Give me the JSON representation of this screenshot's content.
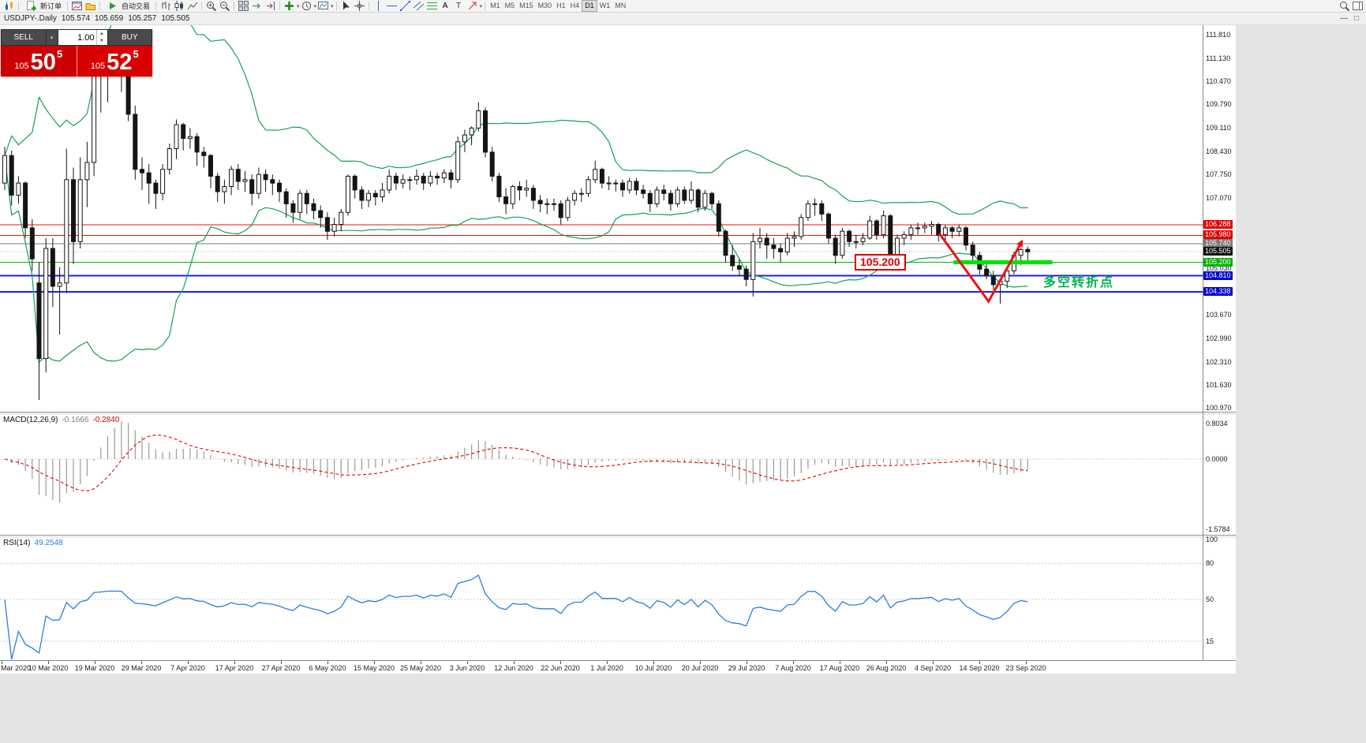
{
  "toolbar": {
    "new_order_label": "新订单",
    "auto_trading_label": "自动交易",
    "text_tool_label": "A",
    "label_tool_label": "T",
    "timeframes": [
      "M1",
      "M5",
      "M15",
      "M30",
      "H1",
      "H4",
      "D1",
      "W1",
      "MN"
    ],
    "active_timeframe": "D1"
  },
  "window_controls": {
    "minimize": "—",
    "restore": "□",
    "close": "×"
  },
  "chart_header": {
    "title": "USDJPY-.Daily",
    "open": "105.574",
    "high": "105.659",
    "low": "105.257",
    "close": "105.505"
  },
  "trade_panel": {
    "sell_label": "SELL",
    "buy_label": "BUY",
    "volume": "1.00",
    "bid_base": "105",
    "bid_big": "50",
    "bid_sup": "5",
    "ask_base": "105",
    "ask_big": "52",
    "ask_sup": "5"
  },
  "annotations": {
    "price_callout": "105.200",
    "turning_point_text": "多空转折点"
  },
  "price_axis": {
    "ticks": [
      111.81,
      111.13,
      110.47,
      109.79,
      109.11,
      108.43,
      107.75,
      107.07,
      105.03,
      103.67,
      102.99,
      102.31,
      101.63,
      100.97
    ],
    "line_labels": [
      {
        "text": "106.288",
        "price": 106.288,
        "bg": "#dd0000",
        "fg": "#ffffff"
      },
      {
        "text": "105.980",
        "price": 105.98,
        "bg": "#dd0000",
        "fg": "#ffffff"
      },
      {
        "text": "105.740",
        "price": 105.74,
        "bg": "#7a7a7a",
        "fg": "#ffffff"
      },
      {
        "text": "105.505",
        "price": 105.505,
        "bg": "#101010",
        "fg": "#ffffff"
      },
      {
        "text": "105.200",
        "price": 105.2,
        "bg": "#00b300",
        "fg": "#ffffff"
      },
      {
        "text": "104.810",
        "price": 104.81,
        "bg": "#0000cc",
        "fg": "#ffffff"
      },
      {
        "text": "104.338",
        "price": 104.338,
        "bg": "#0000cc",
        "fg": "#ffffff"
      }
    ]
  },
  "macd_panel": {
    "name": "MACD(12,26,9)",
    "value1": "-0.1666",
    "value2": "-0.2840",
    "axis_labels": [
      {
        "text": "0.8034",
        "value": 0.8034
      },
      {
        "text": "0.0000",
        "value": 0
      },
      {
        "text": "-1.5784",
        "value": -1.5784
      }
    ]
  },
  "rsi_panel": {
    "name": "RSI(14)",
    "value": "49.2548",
    "axis_labels": [
      {
        "text": "100",
        "value": 100
      },
      {
        "text": "80",
        "value": 80
      },
      {
        "text": "50",
        "value": 50
      },
      {
        "text": "15",
        "value": 15
      }
    ],
    "levels": [
      80,
      50,
      15
    ]
  },
  "date_axis": [
    "Mar 2020",
    "10 Mar 2020",
    "19 Mar 2020",
    "29 Mar 2020",
    "7 Apr 2020",
    "17 Apr 2020",
    "27 Apr 2020",
    "6 May 2020",
    "15 May 2020",
    "25 May 2020",
    "3 Jun 2020",
    "12 Jun 2020",
    "22 Jun 2020",
    "1 Jul 2020",
    "10 Jul 2020",
    "20 Jul 2020",
    "29 Jul 2020",
    "7 Aug 2020",
    "17 Aug 2020",
    "26 Aug 2020",
    "4 Sep 2020",
    "14 Sep 2020",
    "23 Sep 2020"
  ],
  "chart_data": {
    "type": "candlestick",
    "symbol": "USDJPY",
    "period": "Daily",
    "ylim": [
      100.857,
      112.11
    ],
    "ohlc": [
      [
        107.5,
        108.55,
        107.3,
        108.3
      ],
      [
        108.3,
        108.45,
        106.85,
        107.15
      ],
      [
        107.15,
        107.7,
        106.9,
        107.5
      ],
      [
        107.5,
        107.55,
        105.9,
        106.2
      ],
      [
        106.2,
        106.45,
        104.95,
        105.3
      ],
      [
        104.6,
        105.2,
        101.2,
        102.4
      ],
      [
        102.4,
        105.9,
        102.0,
        105.6
      ],
      [
        105.6,
        105.9,
        103.9,
        104.5
      ],
      [
        104.5,
        105.05,
        103.1,
        104.6
      ],
      [
        104.6,
        108.5,
        104.3,
        107.6
      ],
      [
        107.6,
        107.95,
        105.15,
        105.8
      ],
      [
        105.8,
        108.25,
        105.6,
        107.6
      ],
      [
        107.6,
        108.7,
        106.8,
        108.1
      ],
      [
        108.1,
        110.95,
        107.7,
        110.7
      ],
      [
        110.7,
        111.5,
        109.55,
        110.9
      ],
      [
        110.9,
        111.6,
        109.85,
        111.2
      ],
      [
        111.2,
        111.7,
        110.75,
        111.25
      ],
      [
        111.25,
        111.45,
        110.15,
        111.2
      ],
      [
        111.2,
        111.3,
        109.3,
        109.5
      ],
      [
        109.5,
        109.75,
        107.6,
        107.9
      ],
      [
        107.9,
        108.25,
        107.3,
        107.8
      ],
      [
        107.8,
        108.05,
        106.9,
        107.5
      ],
      [
        107.5,
        107.6,
        106.75,
        107.2
      ],
      [
        107.2,
        108.05,
        107.0,
        107.9
      ],
      [
        107.9,
        108.65,
        107.75,
        108.5
      ],
      [
        108.5,
        109.35,
        108.2,
        109.2
      ],
      [
        109.2,
        109.25,
        108.45,
        108.8
      ],
      [
        108.8,
        109.1,
        108.5,
        108.85
      ],
      [
        108.85,
        108.95,
        108.0,
        108.4
      ],
      [
        108.4,
        108.55,
        107.95,
        108.3
      ],
      [
        108.3,
        108.35,
        107.35,
        107.7
      ],
      [
        107.7,
        107.8,
        106.95,
        107.25
      ],
      [
        107.25,
        107.6,
        106.9,
        107.4
      ],
      [
        107.4,
        108.0,
        107.15,
        107.9
      ],
      [
        107.9,
        108.05,
        107.3,
        107.55
      ],
      [
        107.55,
        107.85,
        107.25,
        107.6
      ],
      [
        107.6,
        107.75,
        106.85,
        107.2
      ],
      [
        107.2,
        107.95,
        107.05,
        107.75
      ],
      [
        107.75,
        107.9,
        107.25,
        107.6
      ],
      [
        107.6,
        107.75,
        107.15,
        107.5
      ],
      [
        107.5,
        107.6,
        106.95,
        107.25
      ],
      [
        107.25,
        107.35,
        106.5,
        106.9
      ],
      [
        106.9,
        107.0,
        106.35,
        106.65
      ],
      [
        106.65,
        107.3,
        106.45,
        107.2
      ],
      [
        107.2,
        107.3,
        106.6,
        106.9
      ],
      [
        106.9,
        107.05,
        106.45,
        106.7
      ],
      [
        106.7,
        106.85,
        106.2,
        106.5
      ],
      [
        106.5,
        106.65,
        105.85,
        106.1
      ],
      [
        106.1,
        106.5,
        105.95,
        106.3
      ],
      [
        106.3,
        106.75,
        106.1,
        106.65
      ],
      [
        106.65,
        107.75,
        106.55,
        107.7
      ],
      [
        107.7,
        107.75,
        107.05,
        107.3
      ],
      [
        107.3,
        107.4,
        106.75,
        107.0
      ],
      [
        107.0,
        107.3,
        106.8,
        107.2
      ],
      [
        107.2,
        107.3,
        106.85,
        107.1
      ],
      [
        107.1,
        107.5,
        106.95,
        107.3
      ],
      [
        107.3,
        107.9,
        107.2,
        107.7
      ],
      [
        107.7,
        107.8,
        107.3,
        107.5
      ],
      [
        107.5,
        107.75,
        107.35,
        107.6
      ],
      [
        107.6,
        107.7,
        107.3,
        107.6
      ],
      [
        107.6,
        107.9,
        107.45,
        107.7
      ],
      [
        107.7,
        107.8,
        107.3,
        107.5
      ],
      [
        107.5,
        107.85,
        107.4,
        107.7
      ],
      [
        107.7,
        107.8,
        107.45,
        107.65
      ],
      [
        107.65,
        107.9,
        107.5,
        107.8
      ],
      [
        107.8,
        107.9,
        107.35,
        107.6
      ],
      [
        107.6,
        108.85,
        107.5,
        108.7
      ],
      [
        108.7,
        109.05,
        108.4,
        108.9
      ],
      [
        108.9,
        109.15,
        108.6,
        109.1
      ],
      [
        109.1,
        109.85,
        109.0,
        109.6
      ],
      [
        109.6,
        109.7,
        108.25,
        108.4
      ],
      [
        108.4,
        108.55,
        107.55,
        107.7
      ],
      [
        107.7,
        107.8,
        106.95,
        107.1
      ],
      [
        107.1,
        107.35,
        106.6,
        106.9
      ],
      [
        106.9,
        107.45,
        106.75,
        107.4
      ],
      [
        107.4,
        107.55,
        107.0,
        107.3
      ],
      [
        107.3,
        107.6,
        107.1,
        107.35
      ],
      [
        107.35,
        107.45,
        106.75,
        107.0
      ],
      [
        107.0,
        107.15,
        106.65,
        106.9
      ],
      [
        106.9,
        107.05,
        106.6,
        106.9
      ],
      [
        106.9,
        107.05,
        106.7,
        106.9
      ],
      [
        106.9,
        107.0,
        106.3,
        106.5
      ],
      [
        106.5,
        107.1,
        106.4,
        107.0
      ],
      [
        107.0,
        107.3,
        106.85,
        107.2
      ],
      [
        107.2,
        107.35,
        106.95,
        107.2
      ],
      [
        107.2,
        107.7,
        107.1,
        107.6
      ],
      [
        107.6,
        108.15,
        107.5,
        107.9
      ],
      [
        107.9,
        107.95,
        107.35,
        107.5
      ],
      [
        107.5,
        107.7,
        107.3,
        107.5
      ],
      [
        107.5,
        107.6,
        107.25,
        107.5
      ],
      [
        107.5,
        107.6,
        107.1,
        107.3
      ],
      [
        107.3,
        107.65,
        107.2,
        107.55
      ],
      [
        107.55,
        107.65,
        107.15,
        107.3
      ],
      [
        107.3,
        107.45,
        107.05,
        107.2
      ],
      [
        107.2,
        107.3,
        106.65,
        106.9
      ],
      [
        106.9,
        107.4,
        106.8,
        107.3
      ],
      [
        107.3,
        107.45,
        107.0,
        107.2
      ],
      [
        107.2,
        107.3,
        106.7,
        106.9
      ],
      [
        106.9,
        107.4,
        106.8,
        107.3
      ],
      [
        107.3,
        107.4,
        106.9,
        107.0
      ],
      [
        107.0,
        107.55,
        106.9,
        107.3
      ],
      [
        107.3,
        107.35,
        106.65,
        106.8
      ],
      [
        106.8,
        107.3,
        106.7,
        107.2
      ],
      [
        107.2,
        107.25,
        106.75,
        106.9
      ],
      [
        106.9,
        107.0,
        105.95,
        106.1
      ],
      [
        106.1,
        106.15,
        105.2,
        105.4
      ],
      [
        105.4,
        105.7,
        104.95,
        105.1
      ],
      [
        105.1,
        105.3,
        104.8,
        105.0
      ],
      [
        105.0,
        105.1,
        104.5,
        104.7
      ],
      [
        104.7,
        106.05,
        104.2,
        105.8
      ],
      [
        105.8,
        106.2,
        105.6,
        105.9
      ],
      [
        105.9,
        106.05,
        105.3,
        105.7
      ],
      [
        105.7,
        105.9,
        105.3,
        105.6
      ],
      [
        105.6,
        105.75,
        105.2,
        105.5
      ],
      [
        105.5,
        106.05,
        105.4,
        105.9
      ],
      [
        105.9,
        106.1,
        105.65,
        105.95
      ],
      [
        105.95,
        106.6,
        105.85,
        106.5
      ],
      [
        106.5,
        107.0,
        106.4,
        106.9
      ],
      [
        106.9,
        107.05,
        106.55,
        106.9
      ],
      [
        106.9,
        107.0,
        106.4,
        106.6
      ],
      [
        106.6,
        106.65,
        105.75,
        105.9
      ],
      [
        105.9,
        106.0,
        105.15,
        105.4
      ],
      [
        105.4,
        106.2,
        105.3,
        106.1
      ],
      [
        106.1,
        106.15,
        105.65,
        105.8
      ],
      [
        105.8,
        106.0,
        105.6,
        105.8
      ],
      [
        105.8,
        106.05,
        105.7,
        105.9
      ],
      [
        105.9,
        106.55,
        105.85,
        106.4
      ],
      [
        106.4,
        106.45,
        105.85,
        106.0
      ],
      [
        106.0,
        106.7,
        105.9,
        106.55
      ],
      [
        106.55,
        106.6,
        105.2,
        105.4
      ],
      [
        105.4,
        106.0,
        105.3,
        105.9
      ],
      [
        105.9,
        106.1,
        105.7,
        106.0
      ],
      [
        106.0,
        106.3,
        105.85,
        106.2
      ],
      [
        106.2,
        106.35,
        106.0,
        106.2
      ],
      [
        106.2,
        106.35,
        106.05,
        106.25
      ],
      [
        106.25,
        106.4,
        106.0,
        106.3
      ],
      [
        106.3,
        106.35,
        105.8,
        106.0
      ],
      [
        106.0,
        106.3,
        105.85,
        106.2
      ],
      [
        106.2,
        106.25,
        105.9,
        106.1
      ],
      [
        106.1,
        106.3,
        105.95,
        106.2
      ],
      [
        106.2,
        106.25,
        105.55,
        105.7
      ],
      [
        105.7,
        105.8,
        105.25,
        105.4
      ],
      [
        105.4,
        105.5,
        104.85,
        105.0
      ],
      [
        105.0,
        105.2,
        104.7,
        104.8
      ],
      [
        104.8,
        104.95,
        104.4,
        104.55
      ],
      [
        104.55,
        104.7,
        104.0,
        104.65
      ],
      [
        104.65,
        105.05,
        104.45,
        104.95
      ],
      [
        104.95,
        105.5,
        104.85,
        105.4
      ],
      [
        105.4,
        105.62,
        105.12,
        105.57
      ],
      [
        105.574,
        105.659,
        105.257,
        105.505
      ]
    ],
    "overlays": {
      "bollinger": {
        "period": 20,
        "deviation": 2,
        "color": "#12a352"
      },
      "hlines": [
        {
          "price": 106.288,
          "color": "#ee1111",
          "width": 1
        },
        {
          "price": 105.98,
          "color": "#ee1111",
          "width": 1
        },
        {
          "price": 105.74,
          "color": "#7a7a7a",
          "width": 1
        },
        {
          "price": 105.505,
          "color": "#b5b5b5",
          "width": 1,
          "dotted": true
        },
        {
          "price": 105.2,
          "color": "#00bb00",
          "width": 1
        },
        {
          "price": 104.81,
          "color": "#2222dd",
          "width": 2
        },
        {
          "price": 104.338,
          "color": "#2222dd",
          "width": 2
        }
      ],
      "support_segment": {
        "price": 105.2,
        "from_index": 138.2,
        "to_index": 152.6,
        "color": "#00e400",
        "width": 5
      },
      "trend_arrow": {
        "points": [
          [
            136.2,
            106.02
          ],
          [
            143.3,
            104.06
          ],
          [
            147.8,
            105.68
          ]
        ],
        "color": "#ee1111",
        "width": 3
      }
    },
    "macd": {
      "fast": 12,
      "slow": 26,
      "signal": 9,
      "ylim": [
        -1.5784,
        0.8034
      ]
    },
    "rsi": {
      "period": 14,
      "ylim": [
        0,
        100
      ]
    }
  }
}
